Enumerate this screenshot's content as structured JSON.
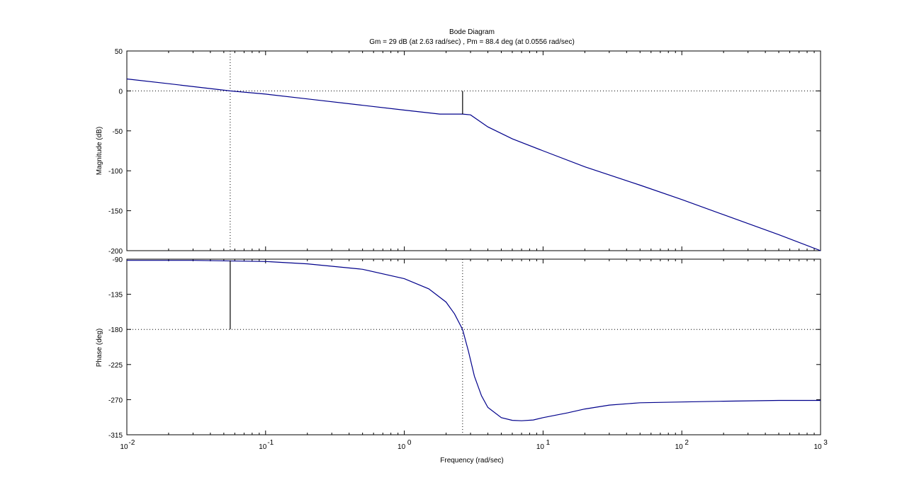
{
  "figure": {
    "title": "Bode Diagram",
    "subtitle": "Gm = 29 dB (at 2.63 rad/sec) ,  Pm = 88.4 deg (at 0.0556 rad/sec)",
    "xlabel": "Frequency  (rad/sec)"
  },
  "chart_data": [
    {
      "type": "line",
      "name": "magnitude",
      "ylabel": "Magnitude (dB)",
      "xscale": "log",
      "xlim": [
        0.01,
        1000
      ],
      "ylim": [
        -200,
        50
      ],
      "yticks": [
        50,
        0,
        -50,
        -100,
        -150,
        -200
      ],
      "grid": false,
      "line_color": "#00008b",
      "series": [
        {
          "x": [
            0.01,
            0.02,
            0.0556,
            0.1,
            0.2,
            0.5,
            1,
            1.8,
            2.63,
            3,
            4,
            6,
            10,
            20,
            50,
            100,
            200,
            500,
            1000
          ],
          "y": [
            15,
            9,
            0,
            -4,
            -10,
            -18,
            -24,
            -29,
            -29,
            -30,
            -45,
            -60,
            -75,
            -95,
            -118,
            -136,
            -155,
            -180,
            -200
          ]
        }
      ],
      "reference_line_y": 0,
      "marker_line": {
        "x": 2.63,
        "y_from": -29,
        "y_to": 0
      },
      "crossover_line_x": 0.0556
    },
    {
      "type": "line",
      "name": "phase",
      "ylabel": "Phase (deg)",
      "xscale": "log",
      "xlim": [
        0.01,
        1000
      ],
      "ylim": [
        -315,
        -90
      ],
      "yticks": [
        -90,
        -135,
        -180,
        -225,
        -270,
        -315
      ],
      "xticks": [
        0.01,
        0.1,
        1,
        10,
        100,
        1000
      ],
      "xtick_labels": [
        {
          "base": "10",
          "exp": "-2"
        },
        {
          "base": "10",
          "exp": "-1"
        },
        {
          "base": "10",
          "exp": "0"
        },
        {
          "base": "10",
          "exp": "1"
        },
        {
          "base": "10",
          "exp": "2"
        },
        {
          "base": "10",
          "exp": "3"
        }
      ],
      "grid": false,
      "line_color": "#00008b",
      "series": [
        {
          "x": [
            0.01,
            0.03,
            0.1,
            0.2,
            0.5,
            1,
            1.5,
            2,
            2.3,
            2.63,
            2.9,
            3.2,
            3.6,
            4,
            5,
            6,
            7,
            8.5,
            10,
            15,
            20,
            30,
            50,
            100,
            200,
            500,
            1000
          ],
          "y": [
            -91.5,
            -91.5,
            -93,
            -96,
            -103,
            -115,
            -128,
            -145,
            -160,
            -180,
            -208,
            -240,
            -265,
            -280,
            -293,
            -296.5,
            -297,
            -296,
            -293,
            -287,
            -282,
            -277,
            -274,
            -273,
            -272,
            -271,
            -271
          ]
        }
      ],
      "reference_line_y": -180,
      "marker_line": {
        "x": 0.0556,
        "y_from": -91.6,
        "y_to": -180
      },
      "crossover_line_x": 2.63
    }
  ]
}
